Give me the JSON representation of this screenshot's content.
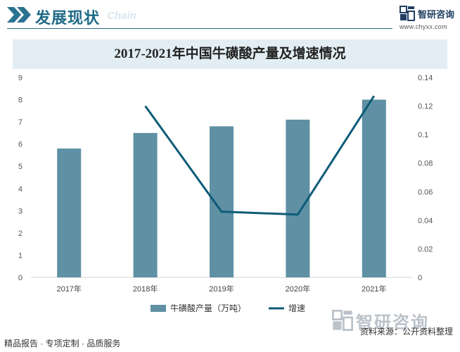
{
  "header": {
    "title": "发展现状",
    "subtitle": "Chain",
    "brand_name": "智研咨询",
    "brand_url": "www.chyxx.com"
  },
  "chart_data": {
    "type": "bar",
    "title": "2017-2021年中国牛磺酸产量及增速情况",
    "categories": [
      "2017年",
      "2018年",
      "2019年",
      "2020年",
      "2021年"
    ],
    "series": [
      {
        "name": "牛磺酸产量（万吨）",
        "type": "bar",
        "axis": "left",
        "values": [
          5.8,
          6.5,
          6.8,
          7.1,
          8.0
        ],
        "color": "#5f90a3"
      },
      {
        "name": "增速",
        "type": "line",
        "axis": "right",
        "values": [
          null,
          0.12,
          0.046,
          0.044,
          0.127
        ],
        "color": "#0d5c78"
      }
    ],
    "y_left": {
      "min": 0,
      "max": 9,
      "ticks": [
        "0",
        "1",
        "2",
        "3",
        "4",
        "5",
        "6",
        "7",
        "8",
        "9"
      ]
    },
    "y_right": {
      "min": 0,
      "max": 0.14,
      "ticks": [
        "0",
        "0.02",
        "0.04",
        "0.06",
        "0.08",
        "0.1",
        "0.12",
        "0.14"
      ]
    },
    "grid": false,
    "legend": "bottom"
  },
  "footer": {
    "left": "精品报告 · 专项定制 · 品质服务",
    "source": "资料来源：公开资料整理",
    "brand_name": "智研咨询"
  }
}
